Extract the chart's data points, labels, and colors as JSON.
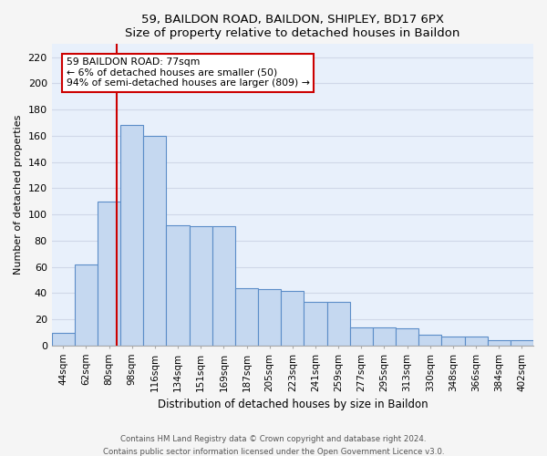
{
  "title": "59, BAILDON ROAD, BAILDON, SHIPLEY, BD17 6PX",
  "subtitle": "Size of property relative to detached houses in Baildon",
  "xlabel": "Distribution of detached houses by size in Baildon",
  "ylabel": "Number of detached properties",
  "bar_labels": [
    "44sqm",
    "62sqm",
    "80sqm",
    "98sqm",
    "116sqm",
    "134sqm",
    "151sqm",
    "169sqm",
    "187sqm",
    "205sqm",
    "223sqm",
    "241sqm",
    "259sqm",
    "277sqm",
    "295sqm",
    "313sqm",
    "330sqm",
    "348sqm",
    "366sqm",
    "384sqm",
    "402sqm"
  ],
  "bar_values": [
    10,
    62,
    110,
    168,
    160,
    92,
    91,
    91,
    44,
    43,
    42,
    33,
    33,
    14,
    14,
    13,
    8,
    7,
    7,
    4,
    4
  ],
  "bar_color": "#c5d8f0",
  "bar_edge_color": "#5b8dc8",
  "background_color": "#e8f0fb",
  "grid_color": "#d0d8e8",
  "annotation_box_text": "59 BAILDON ROAD: 77sqm\n← 6% of detached houses are smaller (50)\n94% of semi-detached houses are larger (809) →",
  "annotation_box_color": "#ffffff",
  "annotation_box_border": "#cc0000",
  "vline_color": "#cc0000",
  "vline_index": 2,
  "ylim": [
    0,
    230
  ],
  "yticks": [
    0,
    20,
    40,
    60,
    80,
    100,
    120,
    140,
    160,
    180,
    200,
    220
  ],
  "footer1": "Contains HM Land Registry data © Crown copyright and database right 2024.",
  "footer2": "Contains public sector information licensed under the Open Government Licence v3.0."
}
